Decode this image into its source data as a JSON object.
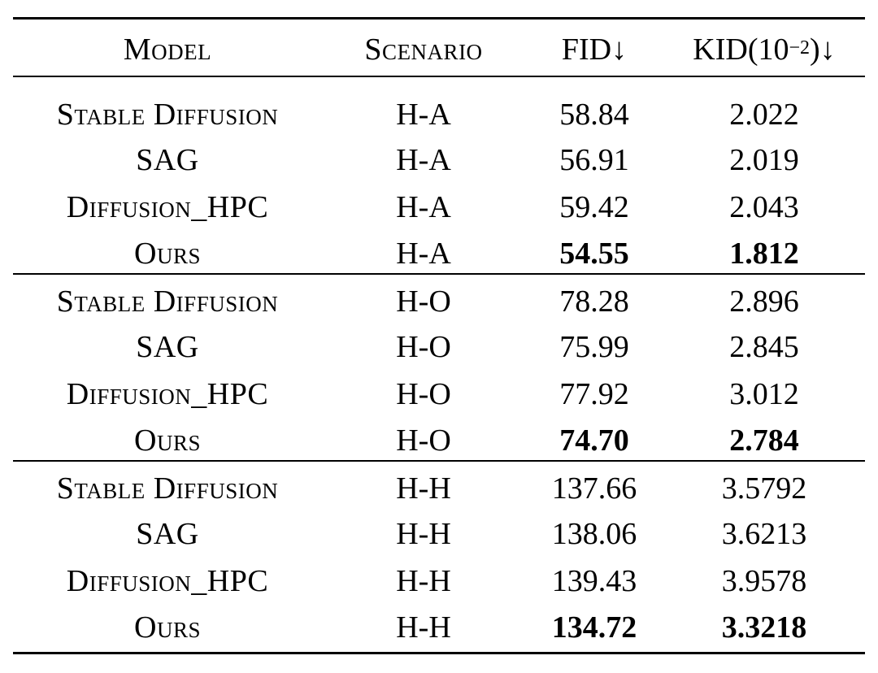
{
  "table": {
    "headers": {
      "model": "Model",
      "scenario": "Scenario",
      "fid": "FID↓",
      "kid_prefix": "KID(10",
      "kid_exp": "−2",
      "kid_suffix": ")↓"
    },
    "rows": [
      {
        "model": "Stable Diffusion",
        "scenario": "H-A",
        "fid": "58.84",
        "kid": "2.022",
        "best": false
      },
      {
        "model": "SAG",
        "scenario": "H-A",
        "fid": "56.91",
        "kid": "2.019",
        "best": false
      },
      {
        "model": "Diffusion_HPC",
        "scenario": "H-A",
        "fid": "59.42",
        "kid": "2.043",
        "best": false
      },
      {
        "model": "Ours",
        "scenario": "H-A",
        "fid": "54.55",
        "kid": "1.812",
        "best": true
      },
      {
        "model": "Stable Diffusion",
        "scenario": "H-O",
        "fid": "78.28",
        "kid": "2.896",
        "best": false
      },
      {
        "model": "SAG",
        "scenario": "H-O",
        "fid": "75.99",
        "kid": "2.845",
        "best": false
      },
      {
        "model": "Diffusion_HPC",
        "scenario": "H-O",
        "fid": "77.92",
        "kid": "3.012",
        "best": false
      },
      {
        "model": "Ours",
        "scenario": "H-O",
        "fid": "74.70",
        "kid": "2.784",
        "best": true
      },
      {
        "model": "Stable Diffusion",
        "scenario": "H-H",
        "fid": "137.66",
        "kid": "3.5792",
        "best": false
      },
      {
        "model": "SAG",
        "scenario": "H-H",
        "fid": "138.06",
        "kid": "3.6213",
        "best": false
      },
      {
        "model": "Diffusion_HPC",
        "scenario": "H-H",
        "fid": "139.43",
        "kid": "3.9578",
        "best": false
      },
      {
        "model": "Ours",
        "scenario": "H-H",
        "fid": "134.72",
        "kid": "3.3218",
        "best": true
      }
    ]
  }
}
